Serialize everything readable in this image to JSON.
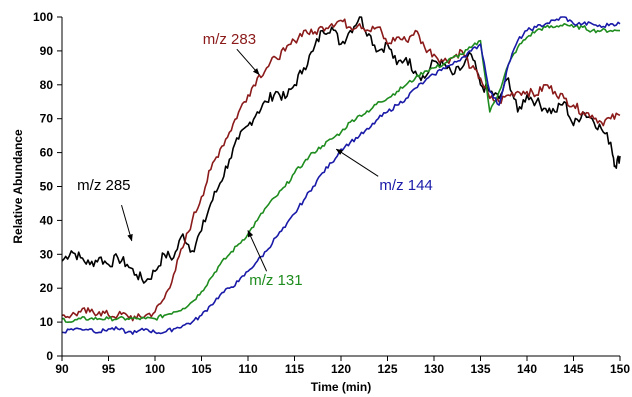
{
  "chart_data": {
    "type": "line",
    "title": "",
    "xlabel": "Time (min)",
    "ylabel": "Relative Abundance",
    "xlim": [
      90,
      150
    ],
    "ylim": [
      0,
      100
    ],
    "xticks": [
      90,
      95,
      100,
      105,
      110,
      115,
      120,
      125,
      130,
      135,
      140,
      145,
      150
    ],
    "yticks": [
      0,
      10,
      20,
      30,
      40,
      50,
      60,
      70,
      80,
      90,
      100
    ],
    "grid": false,
    "legend": "none",
    "series": [
      {
        "name": "m/z 285",
        "color": "#000000",
        "x": [
          90,
          91,
          92,
          93,
          94,
          95,
          96,
          97,
          98,
          99,
          100,
          101,
          102,
          103,
          104,
          105,
          106,
          107,
          108,
          109,
          110,
          111,
          112,
          113,
          114,
          115,
          116,
          117,
          118,
          119,
          120,
          121,
          122,
          123,
          124,
          125,
          126,
          127,
          128,
          129,
          130,
          131,
          132,
          133,
          134,
          135,
          136,
          137,
          138,
          139,
          140,
          141,
          142,
          143,
          144,
          145,
          146,
          147,
          148,
          149,
          149.5,
          150
        ],
        "y": [
          28,
          31,
          29,
          27,
          29,
          27,
          29,
          27,
          24,
          22,
          25,
          30,
          29,
          36,
          31,
          37,
          45,
          51,
          58,
          64,
          68,
          72,
          75,
          78,
          76,
          80,
          85,
          90,
          96,
          97,
          92,
          96,
          100,
          95,
          90,
          92,
          86,
          88,
          84,
          82,
          87,
          86,
          83,
          85,
          89,
          80,
          78,
          76,
          82,
          72,
          77,
          75,
          73,
          72,
          75,
          68,
          72,
          70,
          67,
          63,
          56,
          59
        ]
      },
      {
        "name": "m/z 283",
        "color": "#8b1a1a",
        "x": [
          90,
          91,
          92,
          93,
          94,
          95,
          96,
          97,
          98,
          99,
          100,
          101,
          102,
          103,
          104,
          105,
          106,
          107,
          108,
          109,
          110,
          111,
          112,
          113,
          114,
          115,
          116,
          117,
          118,
          119,
          120,
          121,
          122,
          123,
          124,
          125,
          126,
          127,
          128,
          129,
          130,
          131,
          132,
          133,
          134,
          135,
          136,
          137,
          138,
          139,
          140,
          141,
          142,
          143,
          144,
          145,
          146,
          147,
          148,
          149,
          150
        ],
        "y": [
          12,
          12,
          13,
          13,
          13,
          12,
          12,
          12,
          11,
          12,
          13,
          17,
          24,
          32,
          40,
          47,
          55,
          61,
          66,
          72,
          77,
          82,
          85,
          88,
          90,
          93,
          96,
          95,
          97,
          98,
          99,
          97,
          98,
          96,
          97,
          92,
          94,
          93,
          96,
          91,
          89,
          87,
          88,
          90,
          85,
          82,
          76,
          75,
          77,
          78,
          78,
          77,
          80,
          78,
          76,
          74,
          72,
          71,
          69,
          70,
          71
        ]
      },
      {
        "name": "m/z 131",
        "color": "#1e8c1e",
        "x": [
          90,
          91,
          92,
          93,
          94,
          95,
          96,
          97,
          98,
          99,
          100,
          101,
          102,
          103,
          104,
          105,
          106,
          107,
          108,
          109,
          110,
          111,
          112,
          113,
          114,
          115,
          116,
          117,
          118,
          119,
          120,
          121,
          122,
          123,
          124,
          125,
          126,
          127,
          128,
          129,
          130,
          131,
          132,
          133,
          134,
          135,
          136,
          137,
          138,
          139,
          140,
          141,
          142,
          143,
          144,
          145,
          146,
          147,
          148,
          149,
          150
        ],
        "y": [
          11,
          10,
          11,
          11,
          11,
          11,
          11,
          11,
          11,
          11,
          11,
          12,
          13,
          14,
          16,
          19,
          23,
          27,
          30,
          33,
          36,
          40,
          44,
          47,
          50,
          54,
          57,
          60,
          62,
          64,
          66,
          69,
          71,
          72,
          75,
          76,
          78,
          80,
          82,
          84,
          85,
          86,
          88,
          89,
          91,
          93,
          72,
          78,
          86,
          91,
          94,
          96,
          97,
          97,
          98,
          97,
          97,
          96,
          96,
          96,
          96
        ]
      },
      {
        "name": "m/z 144",
        "color": "#1a1aa8",
        "x": [
          90,
          91,
          92,
          93,
          94,
          95,
          96,
          97,
          98,
          99,
          100,
          101,
          102,
          103,
          104,
          105,
          106,
          107,
          108,
          109,
          110,
          111,
          112,
          113,
          114,
          115,
          116,
          117,
          118,
          119,
          120,
          121,
          122,
          123,
          124,
          125,
          126,
          127,
          128,
          129,
          130,
          131,
          132,
          133,
          134,
          135,
          136,
          137,
          138,
          139,
          140,
          141,
          142,
          143,
          144,
          145,
          146,
          147,
          148,
          149,
          150
        ],
        "y": [
          7,
          8,
          8,
          8,
          7,
          8,
          8,
          7,
          7,
          8,
          7,
          7,
          8,
          9,
          10,
          12,
          15,
          18,
          20,
          22,
          25,
          28,
          31,
          35,
          38,
          42,
          46,
          50,
          54,
          57,
          61,
          63,
          65,
          67,
          70,
          72,
          74,
          76,
          79,
          81,
          83,
          85,
          86,
          88,
          90,
          92,
          78,
          74,
          86,
          93,
          96,
          97,
          98,
          99,
          100,
          98,
          98,
          98,
          97,
          98,
          98
        ]
      }
    ],
    "annotations": [
      {
        "text": "m/z 283",
        "color": "#8b1a1a",
        "x": 108,
        "y": 92,
        "arrow_x": 111.2,
        "arrow_y": 83,
        "arrow_from_x": 108.8,
        "arrow_from_y": 90.5
      },
      {
        "text": "m/z 285",
        "color": "#000000",
        "x": 94.5,
        "y": 49,
        "arrow_x": 97.5,
        "arrow_y": 34,
        "arrow_from_x": 96.4,
        "arrow_from_y": 44.5
      },
      {
        "text": "m/z 144",
        "color": "#1a1aa8",
        "x": 127,
        "y": 49,
        "arrow_x": 119.5,
        "arrow_y": 61,
        "arrow_from_x": 124,
        "arrow_from_y": 53
      },
      {
        "text": "m/z 131",
        "color": "#1e8c1e",
        "x": 113,
        "y": 21,
        "arrow_x": 110,
        "arrow_y": 37,
        "arrow_from_x": 112,
        "arrow_from_y": 25
      }
    ]
  }
}
